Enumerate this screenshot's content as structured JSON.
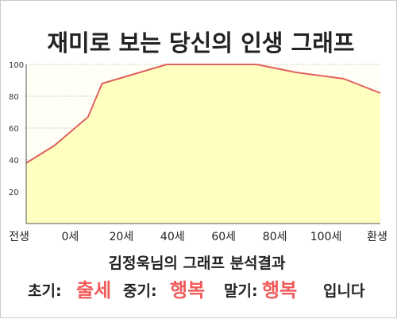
{
  "chart_data": {
    "type": "area",
    "title": "재미로 보는 당신의 인생 그래프",
    "x_categories": [
      "전생",
      "0세",
      "20세",
      "40세",
      "60세",
      "80세",
      "100세",
      "환생"
    ],
    "points": {
      "x": [
        -10,
        0,
        12,
        17,
        40,
        72,
        86,
        103,
        116
      ],
      "y": [
        38,
        49,
        67,
        88,
        100,
        100,
        95,
        91,
        82
      ]
    },
    "xlim": [
      -10,
      116
    ],
    "ylim": [
      0,
      100
    ],
    "yticks": [
      20,
      40,
      60,
      80,
      100
    ],
    "grid": true,
    "colors": {
      "line": "#e0605f",
      "fill": "#ffffc0",
      "grid": "#c8c8c8",
      "emphasis": "#ef5c5b"
    }
  },
  "analysis": {
    "title": "김정욱님의 그래프 분석결과",
    "early_label": "초기:",
    "early_value": "출세",
    "middle_label": "중기:",
    "middle_value": "행복",
    "late_label": "말기:",
    "late_value": "행복",
    "ending": "입니다"
  }
}
